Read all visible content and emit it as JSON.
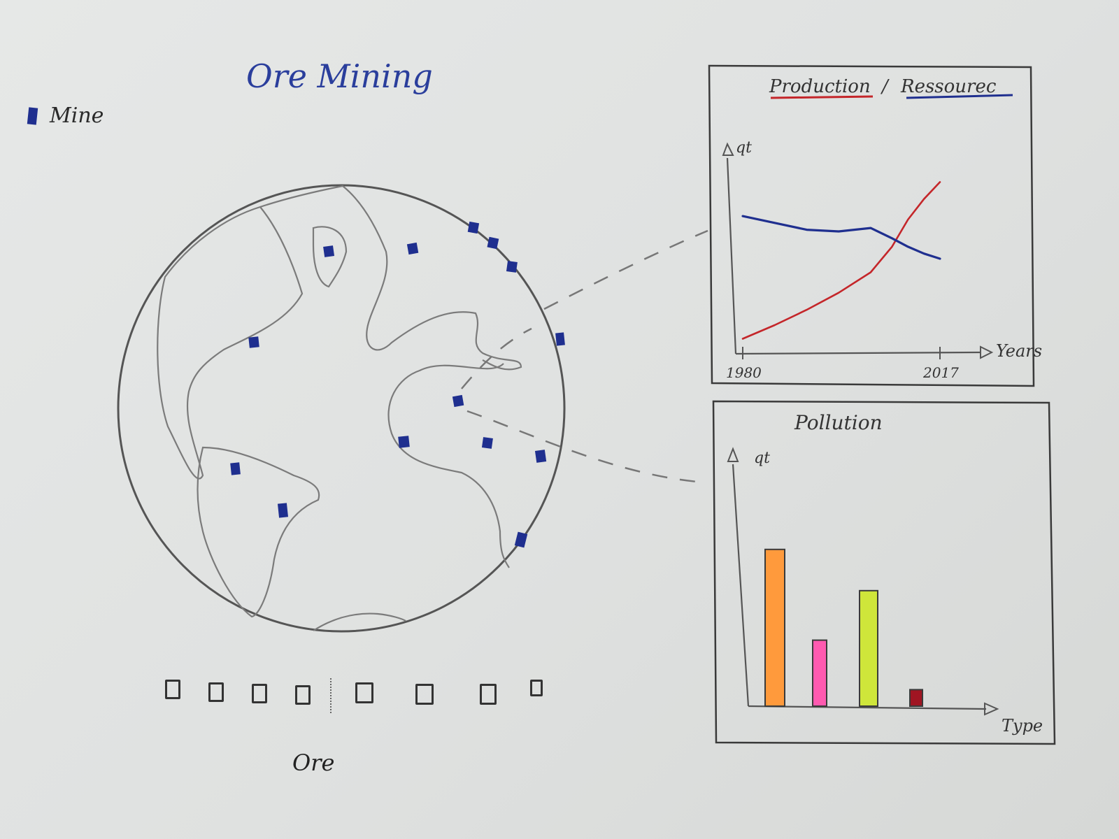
{
  "header": {
    "title": "Ore Mining"
  },
  "legend": {
    "mine_label": "Mine",
    "mine_color": "#1f2f8f"
  },
  "ore": {
    "label": "Ore",
    "options_count": 8
  },
  "line_panel": {
    "title_part1": "Production",
    "separator": "/",
    "title_part2": "Ressourec",
    "title_part1_color": "#c4262a",
    "title_part2_color": "#1f2f8f"
  },
  "bar_panel": {
    "title": "Pollution"
  },
  "chart_data": [
    {
      "type": "line",
      "x_label": "Years",
      "y_label": "qt",
      "x_ticks": [
        "1980",
        "2017"
      ],
      "x": [
        1980,
        1986,
        1992,
        1998,
        2004,
        2008,
        2011,
        2014,
        2017
      ],
      "series": [
        {
          "name": "Production",
          "color": "#c4262a",
          "values": [
            0.08,
            0.16,
            0.25,
            0.35,
            0.47,
            0.62,
            0.78,
            0.9,
            1.0
          ]
        },
        {
          "name": "Ressourec",
          "color": "#1f2f8f",
          "values": [
            0.8,
            0.76,
            0.72,
            0.71,
            0.73,
            0.67,
            0.62,
            0.58,
            0.55
          ]
        }
      ],
      "ylim": [
        0,
        1.1
      ]
    },
    {
      "type": "bar",
      "x_label": "Type",
      "y_label": "qt",
      "categories": [
        "",
        "",
        "",
        ""
      ],
      "colors": [
        "#ff9a3c",
        "#ff5ab0",
        "#cfe63a",
        "#a01522"
      ],
      "values": [
        0.95,
        0.4,
        0.7,
        0.1
      ],
      "ylim": [
        0,
        1.5
      ]
    }
  ]
}
